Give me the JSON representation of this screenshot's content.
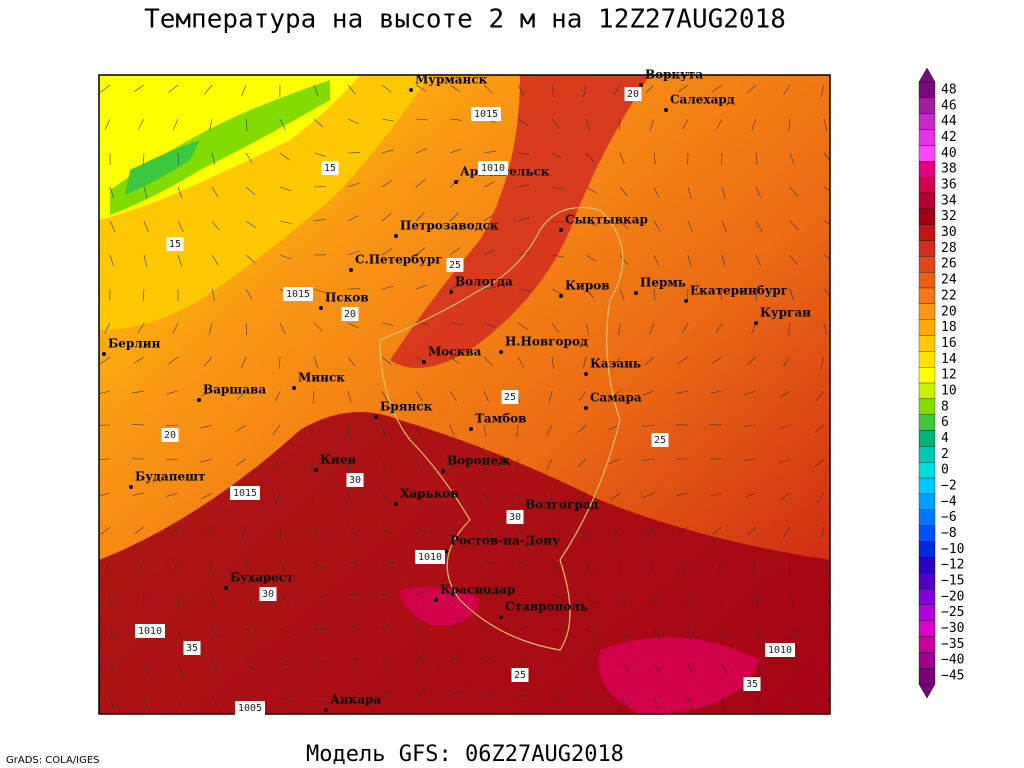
{
  "title": "Температура на высоте 2 м на 12Z27AUG2018",
  "footer": "Модель GFS: 06Z27AUG2018",
  "credit": "GrADS: COLA/IGES",
  "colorbar": {
    "labels": [
      "48",
      "46",
      "44",
      "42",
      "40",
      "38",
      "36",
      "34",
      "32",
      "30",
      "28",
      "26",
      "24",
      "22",
      "20",
      "18",
      "16",
      "14",
      "12",
      "10",
      "8",
      "6",
      "4",
      "2",
      "0",
      "−2",
      "−4",
      "−6",
      "−8",
      "−10",
      "−12",
      "−15",
      "−20",
      "−25",
      "−30",
      "−35",
      "−40",
      "−45"
    ],
    "colors": [
      "#7a0a7a",
      "#a01ea0",
      "#c828c8",
      "#e632e6",
      "#ff46ff",
      "#e6007a",
      "#d2004b",
      "#b4002d",
      "#a00014",
      "#c31414",
      "#d22d1e",
      "#e1461e",
      "#eb5f14",
      "#f57814",
      "#fa9614",
      "#ffaa00",
      "#ffc800",
      "#ffe100",
      "#ffff00",
      "#c8f000",
      "#82dc00",
      "#3cc83c",
      "#00b478",
      "#00c8b4",
      "#00dcdc",
      "#00c8ff",
      "#00a0ff",
      "#0078ff",
      "#0050ff",
      "#0028dc",
      "#2800c8",
      "#5000c8",
      "#8200dc",
      "#b400dc",
      "#dc00c8",
      "#c800a0",
      "#a0008c",
      "#780078"
    ]
  },
  "cities": [
    {
      "name": "Мурманск"
    },
    {
      "name": "Воркута"
    },
    {
      "name": "Салехард"
    },
    {
      "name": "Архангельск"
    },
    {
      "name": "Сыктывкар"
    },
    {
      "name": "Петрозаводск"
    },
    {
      "name": "С.Петербург"
    },
    {
      "name": "Вологда"
    },
    {
      "name": "Киров"
    },
    {
      "name": "Пермь"
    },
    {
      "name": "Екатеринбург"
    },
    {
      "name": "Курган"
    },
    {
      "name": "Псков"
    },
    {
      "name": "Берлин"
    },
    {
      "name": "Н.Новгород"
    },
    {
      "name": "Москва"
    },
    {
      "name": "Казань"
    },
    {
      "name": "Варшава"
    },
    {
      "name": "Минск"
    },
    {
      "name": "Самара"
    },
    {
      "name": "Брянск"
    },
    {
      "name": "Тамбов"
    },
    {
      "name": "Воронеж"
    },
    {
      "name": "Киев"
    },
    {
      "name": "Будапешт"
    },
    {
      "name": "Харьков"
    },
    {
      "name": "Волгоград"
    },
    {
      "name": "Ростов-на-Дону"
    },
    {
      "name": "Бухарест"
    },
    {
      "name": "Краснодар"
    },
    {
      "name": "Ставрополь"
    },
    {
      "name": "Анкара"
    }
  ],
  "contour_labels": [
    "1005",
    "1010",
    "1015",
    "1015",
    "1010",
    "1015",
    "1010",
    "1010",
    "15",
    "15",
    "20",
    "20",
    "25",
    "25",
    "30",
    "30",
    "35",
    "35",
    "20",
    "25",
    "30",
    "25"
  ]
}
